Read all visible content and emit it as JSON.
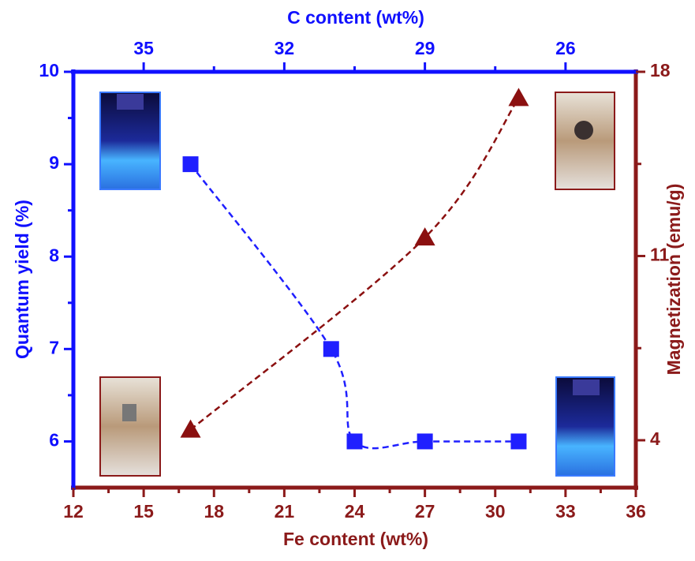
{
  "chart_data": {
    "type": "scatter",
    "x_label": "Fe content (wt%)",
    "x2_label": "C content (wt%)",
    "y_label": "Quantum yield (%)",
    "y2_label": "Magnetization (emu/g)",
    "xlim": [
      12,
      36
    ],
    "xticks": [
      12,
      15,
      18,
      21,
      24,
      27,
      30,
      33,
      36
    ],
    "x2lim": [
      36.5,
      24.5
    ],
    "x2ticks": [
      35,
      32,
      29,
      26
    ],
    "ylim": [
      5.5,
      10
    ],
    "yticks": [
      6,
      7,
      8,
      9,
      10
    ],
    "y2lim": [
      2.2,
      18
    ],
    "y2ticks": [
      4,
      11,
      18
    ],
    "axis_colors": {
      "x": "#8b1a1a",
      "x2": "#1010ff",
      "y": "#1010ff",
      "y2": "#8b1a1a"
    },
    "series": [
      {
        "color": "#1f1fff",
        "marker": "square",
        "x": [
          17,
          23,
          24,
          27,
          31
        ],
        "values": [
          9,
          7,
          6,
          6,
          6
        ]
      },
      {
        "color": "#8b1010",
        "marker": "triangle",
        "axis": "y2",
        "x": [
          17,
          27,
          31
        ],
        "values": [
          4.4,
          11.7,
          17.0
        ]
      }
    ]
  }
}
